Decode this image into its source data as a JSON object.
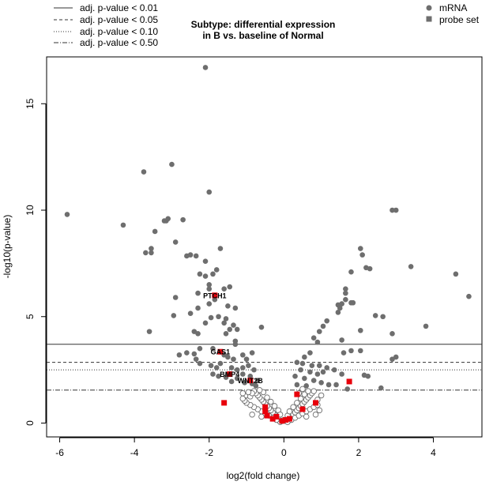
{
  "chart_data": {
    "type": "scatter",
    "title_line1": "Subtype: differential expression",
    "title_line2": "in B vs. baseline of Normal",
    "xlabel": "log2(fold change)",
    "ylabel": "-log10(p-value)",
    "xlim": [
      -6.35,
      5.3
    ],
    "ylim": [
      -0.65,
      17.2
    ],
    "xticks": [
      -6,
      -4,
      -2,
      0,
      2,
      4
    ],
    "yticks": [
      0,
      5,
      10,
      15
    ],
    "threshold_legend": [
      {
        "label": "adj. p-value < 0.01",
        "style": "solid",
        "y": 3.7
      },
      {
        "label": "adj. p-value < 0.05",
        "style": "dashed",
        "y": 2.85
      },
      {
        "label": "adj. p-value < 0.10",
        "style": "dotted",
        "y": 2.5
      },
      {
        "label": "adj. p-value < 0.50",
        "style": "dotdash",
        "y": 1.55
      }
    ],
    "type_legend": [
      {
        "label": "mRNA",
        "shape": "circle",
        "color": "#6e6e6e"
      },
      {
        "label": "probe set",
        "shape": "square",
        "color": "#6e6e6e"
      }
    ],
    "colors": {
      "sig_points": "#6e6e6e",
      "nonsig_edge": "#6e6e6e",
      "highlight": "#e8000b"
    },
    "sig_points": [
      [
        -2.1,
        16.7
      ],
      [
        -5.8,
        9.8
      ],
      [
        -3.0,
        12.15
      ],
      [
        -3.75,
        11.8
      ],
      [
        -2.0,
        10.85
      ],
      [
        -4.3,
        9.3
      ],
      [
        -3.1,
        9.6
      ],
      [
        -3.15,
        9.5
      ],
      [
        -3.2,
        9.5
      ],
      [
        -2.7,
        9.55
      ],
      [
        -3.45,
        9.0
      ],
      [
        -2.9,
        8.5
      ],
      [
        -3.7,
        8.0
      ],
      [
        -3.55,
        8.0
      ],
      [
        -3.55,
        8.2
      ],
      [
        -1.7,
        8.2
      ],
      [
        -2.6,
        7.85
      ],
      [
        -2.5,
        7.9
      ],
      [
        -2.35,
        7.85
      ],
      [
        -2.1,
        7.6
      ],
      [
        -2.25,
        7.0
      ],
      [
        -1.9,
        7.0
      ],
      [
        -1.8,
        7.2
      ],
      [
        -2.1,
        6.9
      ],
      [
        -2.0,
        6.5
      ],
      [
        -1.45,
        6.4
      ],
      [
        -1.6,
        6.3
      ],
      [
        -2.0,
        6.3
      ],
      [
        -2.3,
        6.1
      ],
      [
        -2.9,
        5.9
      ],
      [
        -1.85,
        5.8
      ],
      [
        -2.0,
        5.6
      ],
      [
        -1.5,
        5.5
      ],
      [
        -2.3,
        5.4
      ],
      [
        -1.3,
        5.4
      ],
      [
        -2.5,
        5.15
      ],
      [
        -2.95,
        5.05
      ],
      [
        -1.75,
        5.0
      ],
      [
        -1.95,
        4.95
      ],
      [
        -1.55,
        4.9
      ],
      [
        -1.6,
        4.7
      ],
      [
        -2.1,
        4.7
      ],
      [
        -1.35,
        4.6
      ],
      [
        -1.45,
        4.4
      ],
      [
        -1.55,
        4.2
      ],
      [
        -2.4,
        4.3
      ],
      [
        -2.3,
        4.2
      ],
      [
        -3.6,
        4.3
      ],
      [
        -0.6,
        4.5
      ],
      [
        -1.25,
        4.4
      ],
      [
        -1.3,
        3.85
      ],
      [
        -1.3,
        3.7
      ],
      [
        -2.6,
        3.3
      ],
      [
        -2.4,
        3.25
      ],
      [
        -2.25,
        3.5
      ],
      [
        -1.9,
        3.5
      ],
      [
        -1.6,
        3.2
      ],
      [
        -1.5,
        3.1
      ],
      [
        -1.35,
        3.0
      ],
      [
        -1.1,
        3.2
      ],
      [
        -1.0,
        3.0
      ],
      [
        -0.85,
        3.3
      ],
      [
        -2.35,
        3.0
      ],
      [
        -2.25,
        2.8
      ],
      [
        -1.95,
        2.7
      ],
      [
        -1.8,
        2.6
      ],
      [
        -1.7,
        2.8
      ],
      [
        -1.4,
        2.6
      ],
      [
        -1.25,
        2.5
      ],
      [
        -1.1,
        2.6
      ],
      [
        -0.95,
        2.7
      ],
      [
        -0.8,
        2.5
      ],
      [
        -1.5,
        2.3
      ],
      [
        -1.25,
        2.1
      ],
      [
        -1.1,
        2.3
      ],
      [
        -0.9,
        2.2
      ],
      [
        -0.7,
        2.0
      ],
      [
        -1.4,
        1.95
      ],
      [
        -1.05,
        1.9
      ],
      [
        -0.85,
        1.85
      ],
      [
        -0.75,
        1.75
      ],
      [
        -1.9,
        2.3
      ],
      [
        -1.75,
        2.2
      ],
      [
        -1.55,
        2.15
      ],
      [
        -2.8,
        3.2
      ],
      [
        4.95,
        5.95
      ],
      [
        4.6,
        7.0
      ],
      [
        3.4,
        7.35
      ],
      [
        2.9,
        10.0
      ],
      [
        3.0,
        10.0
      ],
      [
        2.05,
        8.2
      ],
      [
        2.1,
        7.9
      ],
      [
        2.2,
        7.3
      ],
      [
        2.3,
        7.25
      ],
      [
        1.8,
        7.1
      ],
      [
        1.65,
        6.1
      ],
      [
        1.65,
        6.3
      ],
      [
        1.65,
        5.8
      ],
      [
        1.55,
        5.6
      ],
      [
        1.45,
        5.55
      ],
      [
        1.8,
        5.65
      ],
      [
        1.85,
        5.65
      ],
      [
        1.5,
        5.4
      ],
      [
        1.45,
        5.2
      ],
      [
        1.15,
        4.8
      ],
      [
        1.05,
        4.55
      ],
      [
        2.45,
        5.05
      ],
      [
        2.65,
        5.0
      ],
      [
        2.9,
        4.2
      ],
      [
        3.8,
        4.55
      ],
      [
        2.05,
        4.35
      ],
      [
        0.95,
        4.3
      ],
      [
        0.8,
        4.0
      ],
      [
        1.55,
        3.9
      ],
      [
        0.9,
        3.8
      ],
      [
        0.7,
        3.3
      ],
      [
        0.55,
        3.1
      ],
      [
        1.8,
        3.4
      ],
      [
        2.05,
        3.4
      ],
      [
        1.6,
        3.3
      ],
      [
        2.9,
        3.0
      ],
      [
        3.0,
        3.1
      ],
      [
        0.35,
        2.85
      ],
      [
        0.5,
        2.8
      ],
      [
        0.75,
        2.7
      ],
      [
        0.95,
        2.7
      ],
      [
        1.15,
        2.6
      ],
      [
        1.35,
        2.5
      ],
      [
        0.45,
        2.5
      ],
      [
        0.7,
        2.4
      ],
      [
        0.9,
        2.3
      ],
      [
        1.05,
        2.4
      ],
      [
        1.55,
        2.3
      ],
      [
        2.15,
        2.25
      ],
      [
        2.25,
        2.2
      ],
      [
        0.3,
        2.2
      ],
      [
        0.55,
        2.1
      ],
      [
        0.8,
        2.0
      ],
      [
        1.0,
        1.9
      ],
      [
        1.2,
        1.8
      ],
      [
        1.4,
        1.8
      ],
      [
        0.35,
        1.8
      ],
      [
        0.6,
        1.75
      ],
      [
        2.6,
        1.65
      ],
      [
        1.7,
        1.6
      ]
    ],
    "nonsig_points": [
      [
        -0.1,
        0.05
      ],
      [
        -0.05,
        0.1
      ],
      [
        0.0,
        0.15
      ],
      [
        0.05,
        0.1
      ],
      [
        0.1,
        0.05
      ],
      [
        -0.15,
        0.2
      ],
      [
        0.15,
        0.2
      ],
      [
        -0.2,
        0.3
      ],
      [
        0.2,
        0.3
      ],
      [
        -0.25,
        0.4
      ],
      [
        0.25,
        0.4
      ],
      [
        -0.3,
        0.5
      ],
      [
        0.3,
        0.5
      ],
      [
        -0.35,
        0.6
      ],
      [
        0.35,
        0.6
      ],
      [
        -0.4,
        0.7
      ],
      [
        0.4,
        0.7
      ],
      [
        -0.45,
        0.8
      ],
      [
        0.45,
        0.8
      ],
      [
        -0.5,
        0.9
      ],
      [
        0.5,
        0.9
      ],
      [
        -0.55,
        1.0
      ],
      [
        0.55,
        1.0
      ],
      [
        -0.6,
        1.1
      ],
      [
        0.6,
        1.1
      ],
      [
        -0.65,
        1.2
      ],
      [
        0.65,
        1.2
      ],
      [
        -0.7,
        1.3
      ],
      [
        0.7,
        1.3
      ],
      [
        -0.75,
        1.4
      ],
      [
        0.75,
        1.4
      ],
      [
        -0.8,
        1.5
      ],
      [
        0.8,
        1.5
      ],
      [
        -0.2,
        0.15
      ],
      [
        0.2,
        0.15
      ],
      [
        -0.3,
        0.25
      ],
      [
        0.3,
        0.25
      ],
      [
        -0.4,
        0.35
      ],
      [
        0.4,
        0.35
      ],
      [
        -0.5,
        0.45
      ],
      [
        0.5,
        0.45
      ],
      [
        -0.6,
        0.55
      ],
      [
        0.6,
        0.55
      ],
      [
        -0.7,
        0.65
      ],
      [
        0.7,
        0.65
      ],
      [
        -0.8,
        0.75
      ],
      [
        0.8,
        0.75
      ],
      [
        -0.9,
        0.85
      ],
      [
        0.9,
        0.85
      ],
      [
        -1.0,
        0.95
      ],
      [
        -1.05,
        1.05
      ],
      [
        -1.1,
        1.15
      ],
      [
        -1.0,
        1.3
      ],
      [
        -0.9,
        1.25
      ],
      [
        -0.85,
        1.4
      ],
      [
        -0.95,
        1.45
      ],
      [
        -1.1,
        1.4
      ],
      [
        -0.45,
        1.2
      ],
      [
        -0.35,
        1.0
      ],
      [
        -0.25,
        0.8
      ],
      [
        -0.15,
        0.6
      ],
      [
        -0.1,
        0.4
      ],
      [
        0.1,
        0.35
      ],
      [
        0.15,
        0.55
      ],
      [
        0.25,
        0.75
      ],
      [
        0.35,
        0.95
      ],
      [
        0.45,
        1.15
      ],
      [
        0.55,
        1.35
      ],
      [
        0.65,
        1.5
      ],
      [
        0.9,
        1.1
      ],
      [
        1.0,
        1.3
      ],
      [
        0.95,
        0.6
      ],
      [
        0.85,
        0.4
      ],
      [
        0.6,
        0.3
      ],
      [
        -0.6,
        0.3
      ],
      [
        -0.85,
        0.4
      ],
      [
        -0.55,
        1.45
      ],
      [
        -0.65,
        1.55
      ],
      [
        0.4,
        1.4
      ],
      [
        0.5,
        1.6
      ]
    ],
    "highlight_points": [
      {
        "x": -1.85,
        "y": 6.0,
        "label": "PTCH1"
      },
      {
        "x": -1.7,
        "y": 3.35,
        "label": "GAS1"
      },
      {
        "x": -1.45,
        "y": 2.3,
        "label": "BMP4"
      },
      {
        "x": -0.9,
        "y": 2.0,
        "label": "WNT2B"
      },
      {
        "x": 1.75,
        "y": 1.95,
        "label": ""
      },
      {
        "x": -1.6,
        "y": 0.95,
        "label": ""
      },
      {
        "x": 0.35,
        "y": 1.35,
        "label": ""
      },
      {
        "x": 0.85,
        "y": 0.95,
        "label": ""
      },
      {
        "x": -0.5,
        "y": 0.55,
        "label": ""
      },
      {
        "x": -0.45,
        "y": 0.35,
        "label": ""
      },
      {
        "x": -0.5,
        "y": 0.75,
        "label": ""
      },
      {
        "x": -0.2,
        "y": 0.3,
        "label": ""
      },
      {
        "x": -0.05,
        "y": 0.1,
        "label": ""
      },
      {
        "x": 0.05,
        "y": 0.15,
        "label": ""
      },
      {
        "x": 0.15,
        "y": 0.2,
        "label": ""
      },
      {
        "x": 0.5,
        "y": 0.65,
        "label": ""
      },
      {
        "x": -0.3,
        "y": 0.2,
        "label": ""
      }
    ]
  }
}
